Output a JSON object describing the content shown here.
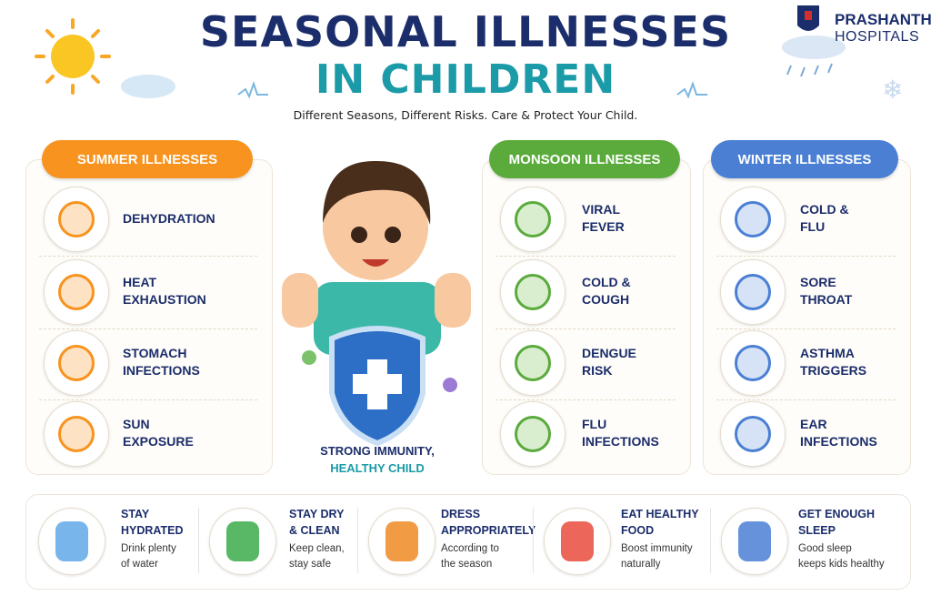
{
  "header": {
    "title_line1": "SEASONAL ILLNESSES",
    "title_line2": "IN CHILDREN",
    "subtitle": "Different Seasons, Different Risks. Care & Protect Your Child.",
    "brand_line1": "PRASHANTH",
    "brand_line2": "HOSPITALS"
  },
  "panels": [
    {
      "title": "SUMMER ILLNESSES",
      "items": [
        [
          "DEHYDRATION"
        ],
        [
          "HEAT",
          "EXHAUSTION"
        ],
        [
          "STOMACH",
          "INFECTIONS"
        ],
        [
          "SUN",
          "EXPOSURE"
        ]
      ]
    },
    {
      "title": "MONSOON ILLNESSES",
      "items": [
        [
          "VIRAL",
          "FEVER"
        ],
        [
          "COLD &",
          "COUGH"
        ],
        [
          "DENGUE",
          "RISK"
        ],
        [
          "FLU",
          "INFECTIONS"
        ]
      ]
    },
    {
      "title": "WINTER ILLNESSES",
      "items": [
        [
          "COLD &",
          "FLU"
        ],
        [
          "SORE",
          "THROAT"
        ],
        [
          "ASTHMA",
          "TRIGGERS"
        ],
        [
          "EAR",
          "INFECTIONS"
        ]
      ]
    }
  ],
  "center": {
    "line1": "STRONG IMMUNITY,",
    "line2": "HEALTHY CHILD"
  },
  "tips": [
    {
      "title": [
        "STAY",
        "HYDRATED"
      ],
      "text": [
        "Drink plenty",
        "of water"
      ]
    },
    {
      "title": [
        "STAY DRY",
        "& CLEAN"
      ],
      "text": [
        "Keep clean,",
        "stay safe"
      ]
    },
    {
      "title": [
        "DRESS",
        "APPROPRIATELY"
      ],
      "text": [
        "According to",
        "the season"
      ]
    },
    {
      "title": [
        "EAT HEALTHY",
        "FOOD"
      ],
      "text": [
        "Boost immunity",
        "naturally"
      ]
    },
    {
      "title": [
        "GET ENOUGH",
        "SLEEP"
      ],
      "text": [
        "Good sleep",
        "keeps kids healthy"
      ]
    }
  ]
}
